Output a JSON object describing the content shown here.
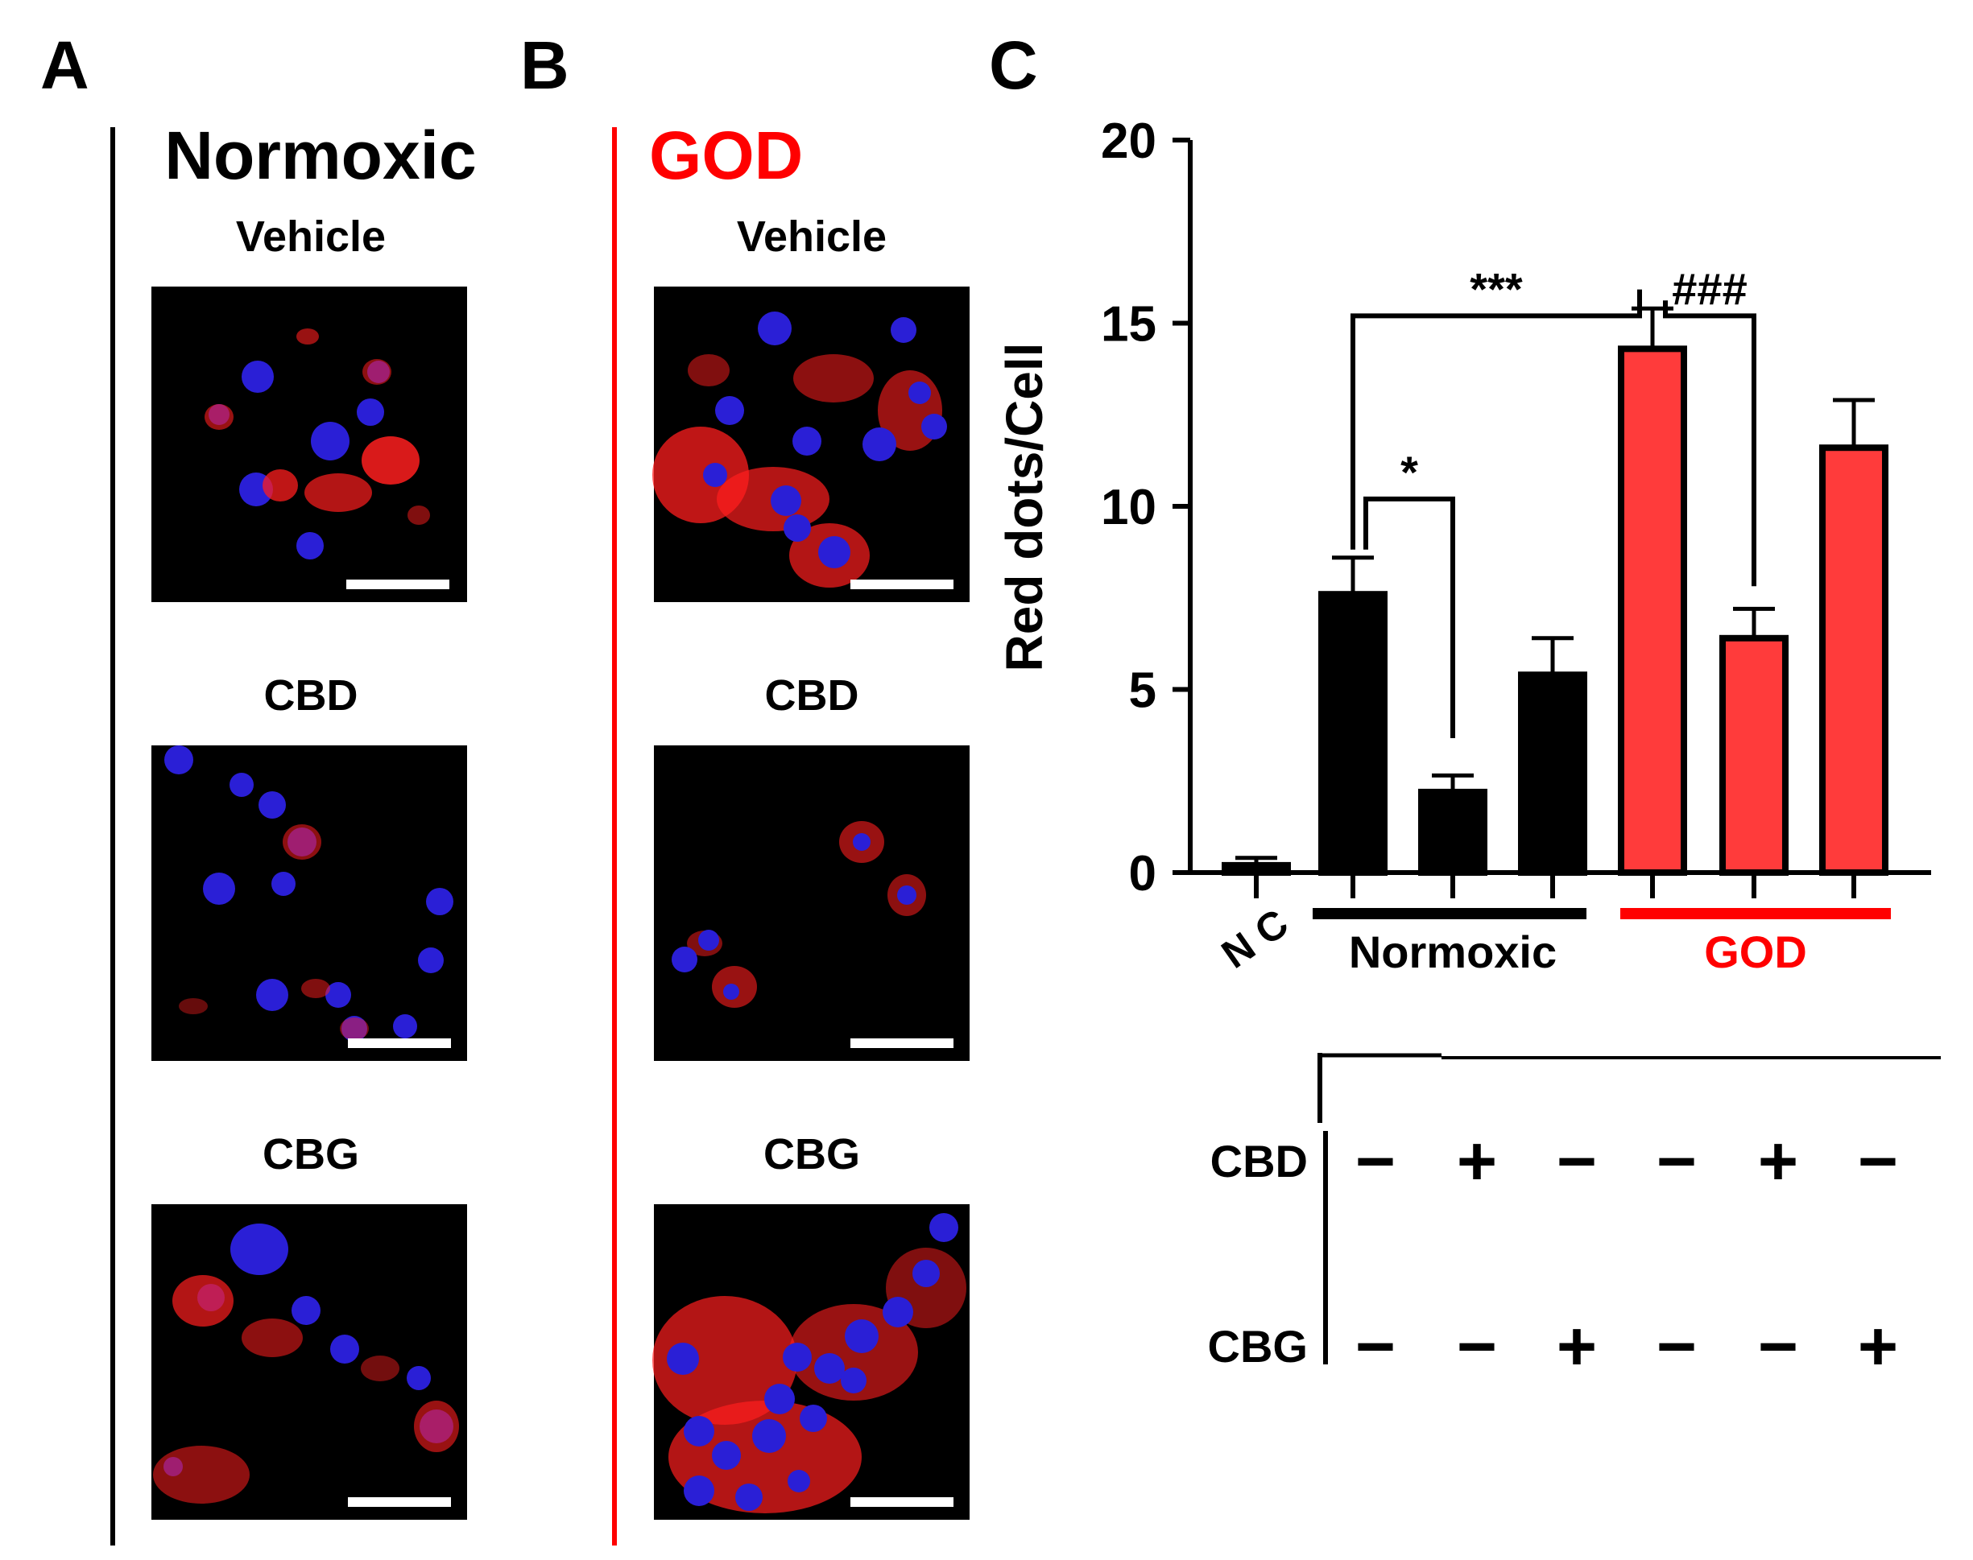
{
  "panels": {
    "a": {
      "letter": "A",
      "title": "Normoxic",
      "rows": [
        "Vehicle",
        "CBD",
        "CBG"
      ]
    },
    "b": {
      "letter": "B",
      "title": "GOD",
      "rows": [
        "Vehicle",
        "CBD",
        "CBG"
      ]
    },
    "c": {
      "letter": "C"
    }
  },
  "colors": {
    "black": "#000000",
    "red": "#ff3b3b",
    "bright_red": "#ff0000",
    "nucleus": "#2a1fd6",
    "puncta": "#ff1e1e"
  },
  "micrographs": {
    "blue_channel": "DAPI nuclei",
    "red_channel": "red puncta"
  },
  "chart_data": {
    "type": "bar",
    "ylabel": "Red dots/Cell",
    "ylim": [
      0,
      20
    ],
    "yticks": [
      "0",
      "5",
      "10",
      "15",
      "20"
    ],
    "yticks_values": [
      0,
      5,
      10,
      15,
      20
    ],
    "categories": [
      "NC",
      "Normoxic Vehicle",
      "Normoxic CBD",
      "Normoxic CBG",
      "GOD Vehicle",
      "GOD CBD",
      "GOD CBG"
    ],
    "values": [
      0.2,
      7.6,
      2.2,
      5.4,
      14.3,
      6.4,
      11.6
    ],
    "errors": [
      0.2,
      1.0,
      0.45,
      1.0,
      1.1,
      0.8,
      1.3
    ],
    "bar_colors": [
      "#000000",
      "#000000",
      "#000000",
      "#000000",
      "#ff3b3b",
      "#ff3b3b",
      "#ff3b3b"
    ],
    "group_labels": {
      "nc": "N C",
      "normoxic": "Normoxic",
      "god": "GOD"
    },
    "significance": [
      {
        "label": "***",
        "from": 1,
        "to": 4
      },
      {
        "label": "*",
        "from": 1,
        "to": 2
      },
      {
        "label": "###",
        "from": 4,
        "to": 5
      }
    ],
    "treatment_table": {
      "rows": [
        {
          "label": "CBD",
          "signs": [
            "−",
            "+",
            "−",
            "−",
            "+",
            "−"
          ]
        },
        {
          "label": "CBG",
          "signs": [
            "−",
            "−",
            "+",
            "−",
            "−",
            "+"
          ]
        }
      ]
    }
  }
}
